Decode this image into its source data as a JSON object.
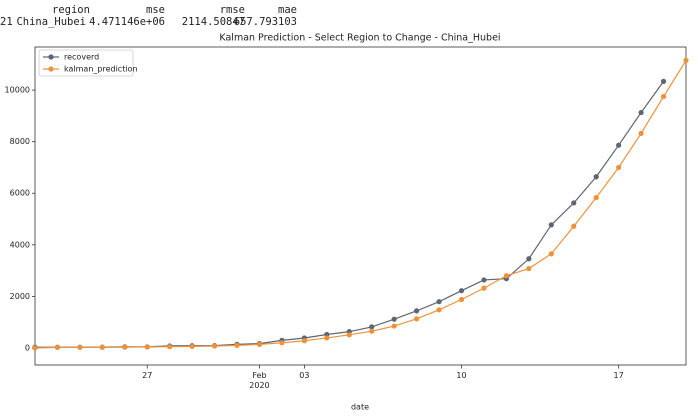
{
  "table": {
    "header": [
      "region",
      "mse",
      "rmse",
      "mae"
    ],
    "rows": [
      {
        "index": "21",
        "cells": [
          "China_Hubei",
          "4.471146e+06",
          "2114.50847",
          "657.793103"
        ]
      }
    ]
  },
  "chart_data": {
    "type": "line",
    "title": "Kalman Prediction - Select Region to Change - China_Hubei",
    "x_label": "date",
    "x": [
      "2020-01-22",
      "2020-01-23",
      "2020-01-24",
      "2020-01-25",
      "2020-01-26",
      "2020-01-27",
      "2020-01-28",
      "2020-01-29",
      "2020-01-30",
      "2020-01-31",
      "2020-02-01",
      "2020-02-02",
      "2020-02-03",
      "2020-02-04",
      "2020-02-05",
      "2020-02-06",
      "2020-02-07",
      "2020-02-08",
      "2020-02-09",
      "2020-02-10",
      "2020-02-11",
      "2020-02-12",
      "2020-02-13",
      "2020-02-14",
      "2020-02-15",
      "2020-02-16",
      "2020-02-17",
      "2020-02-18",
      "2020-02-19",
      "2020-02-20"
    ],
    "series": [
      {
        "name": "recoverd",
        "color": "#5b6573",
        "values": [
          28,
          28,
          31,
          32,
          42,
          45,
          80,
          88,
          90,
          141,
          168,
          295,
          386,
          522,
          633,
          817,
          1115,
          1439,
          1795,
          2222,
          2639,
          2686,
          3459,
          4774,
          5623,
          6639,
          7862,
          9128,
          10337,
          null
        ]
      },
      {
        "name": "kalman_prediction",
        "color": "#ee913a",
        "values": [
          0,
          20,
          25,
          28,
          30,
          40,
          50,
          60,
          75,
          100,
          140,
          200,
          280,
          390,
          510,
          650,
          850,
          1130,
          1480,
          1880,
          2320,
          2800,
          3080,
          3650,
          4720,
          5830,
          7000,
          8320,
          9750,
          11150
        ]
      }
    ],
    "xlim": [
      "2020-01-22",
      "2020-02-20"
    ],
    "xticks": [
      {
        "value": "2020-01-27",
        "label": "27"
      },
      {
        "value": "2020-02-01",
        "label": "Feb\n2020"
      },
      {
        "value": "2020-02-03",
        "label": "03"
      },
      {
        "value": "2020-02-10",
        "label": "10"
      },
      {
        "value": "2020-02-17",
        "label": "17"
      }
    ],
    "ylim": [
      -660,
      11670
    ],
    "yticks": [
      0,
      2000,
      4000,
      6000,
      8000,
      10000
    ],
    "grid": false,
    "legend": "upper left"
  }
}
